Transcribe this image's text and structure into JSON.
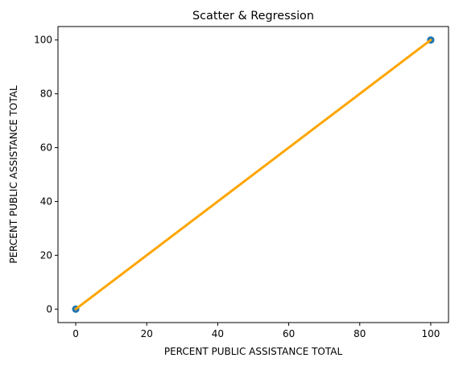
{
  "chart_data": {
    "type": "scatter",
    "title": "Scatter & Regression",
    "xlabel": "PERCENT PUBLIC ASSISTANCE TOTAL",
    "ylabel": "PERCENT PUBLIC ASSISTANCE TOTAL",
    "xlim": [
      -5,
      105
    ],
    "ylim": [
      -5,
      105
    ],
    "xticks": [
      0,
      20,
      40,
      60,
      80,
      100
    ],
    "yticks": [
      0,
      20,
      40,
      60,
      80,
      100
    ],
    "grid": false,
    "series": [
      {
        "type": "scatter",
        "color": "#1f77b4",
        "points": [
          {
            "x": 0,
            "y": 0
          },
          {
            "x": 0,
            "y": 0
          },
          {
            "x": 100,
            "y": 100
          },
          {
            "x": 100,
            "y": 100
          }
        ]
      },
      {
        "type": "line",
        "color": "#ffa500",
        "points": [
          {
            "x": 0,
            "y": 0
          },
          {
            "x": 100,
            "y": 100
          }
        ]
      }
    ]
  }
}
